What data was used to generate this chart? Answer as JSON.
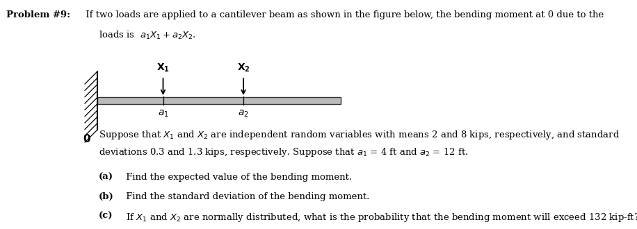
{
  "bg_color": "#ffffff",
  "text_color": "#000000",
  "beam_facecolor": "#bbbbbb",
  "beam_edgecolor": "#333333",
  "wall_color": "#000000",
  "title_bold": "Problem #9:",
  "title_rest": " If two loads are applied to a cantilever beam as shown in the figure below, the bending moment at 0 due to the",
  "title_line2_pre": "loads is  ",
  "title_line2_math": "$a_1X_1 + a_2X_2$.",
  "para_line1": "Suppose that $X_1$ and $X_2$ are independent random variables with means 2 and 8 kips, respectively, and standard",
  "para_line2": "deviations 0.3 and 1.3 kips, respectively. Suppose that $a_1$ = 4 ft and $a_2$ = 12 ft.",
  "part_a_bold": "(a)",
  "part_a_rest": " Find the expected value of the bending moment.",
  "part_b_bold": "(b)",
  "part_b_rest": " Find the standard deviation of the bending moment.",
  "part_c_bold": "(c)",
  "part_c_rest": " If $X_1$ and $X_2$ are normally distributed, what is the probability that the bending moment will exceed 132 kip-ft?",
  "fontsize": 9.5,
  "fontsize_small": 9.0
}
